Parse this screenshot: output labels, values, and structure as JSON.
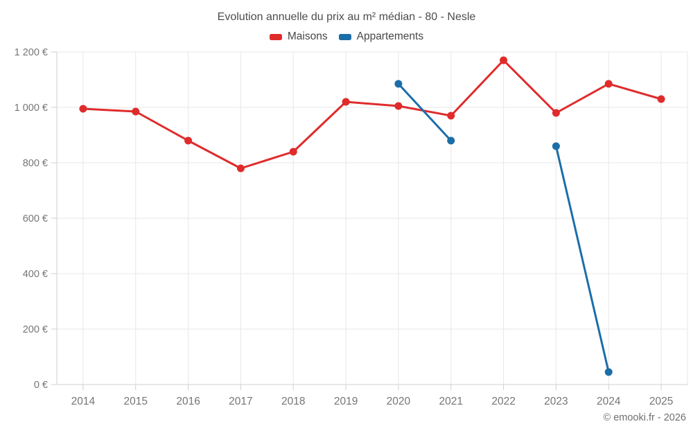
{
  "title": "Evolution annuelle du prix au m² médian - 80 - Nesle",
  "legend": [
    {
      "label": "Maisons",
      "color": "#e02b2b"
    },
    {
      "label": "Appartements",
      "color": "#1b6ea8"
    }
  ],
  "attribution": "© emooki.fr - 2026",
  "colors": {
    "maisons": "#e02b2b",
    "appartements": "#1b6ea8",
    "grid": "#e7e7e7",
    "axis": "#cfcfcf",
    "tick_text": "#757575",
    "title_text": "#4c4c4c"
  },
  "chart_data": {
    "type": "line",
    "title": "Evolution annuelle du prix au m² médian - 80 - Nesle",
    "categories": [
      "2014",
      "2015",
      "2016",
      "2017",
      "2018",
      "2019",
      "2020",
      "2021",
      "2022",
      "2023",
      "2024",
      "2025"
    ],
    "series": [
      {
        "name": "Maisons",
        "color": "#e02b2b",
        "values": [
          995,
          985,
          880,
          780,
          840,
          1020,
          1005,
          970,
          1170,
          980,
          1085,
          1030
        ]
      },
      {
        "name": "Appartements",
        "color": "#1b6ea8",
        "values": [
          null,
          null,
          null,
          null,
          null,
          null,
          1085,
          880,
          null,
          860,
          45,
          null
        ]
      }
    ],
    "xlabel": "",
    "ylabel": "",
    "ylim": [
      0,
      1200
    ],
    "y_ticks": [
      0,
      200,
      400,
      600,
      800,
      1000,
      1200
    ],
    "y_tick_labels": [
      "0 €",
      "200 €",
      "400 €",
      "600 €",
      "800 €",
      "1 000 €",
      "1 200 €"
    ],
    "grid": true,
    "legend_position": "top",
    "currency": "€"
  }
}
